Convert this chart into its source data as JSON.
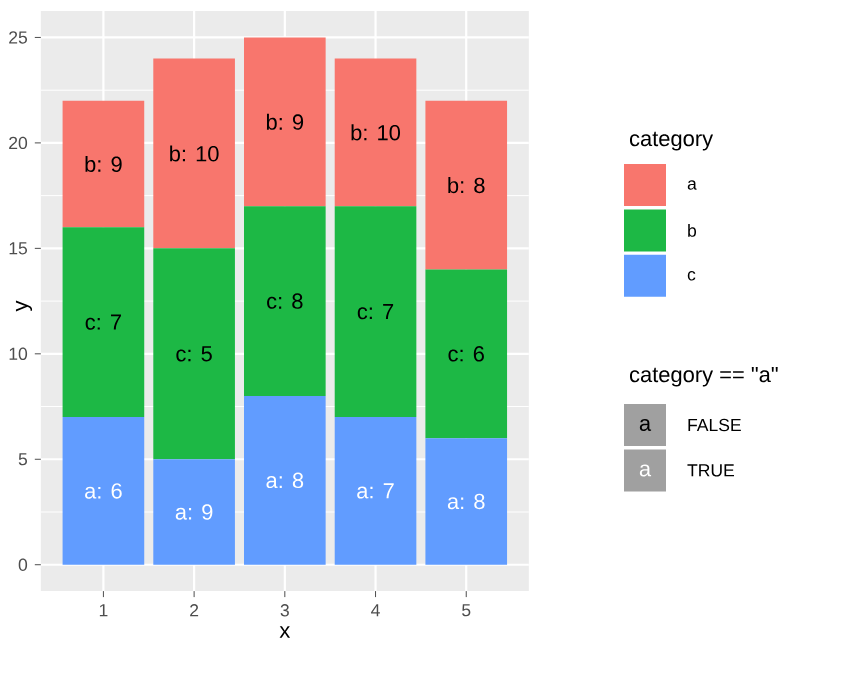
{
  "chart_data": {
    "type": "bar",
    "stacked": true,
    "categories": [
      "1",
      "2",
      "3",
      "4",
      "5"
    ],
    "xlabel": "x",
    "ylabel": "y",
    "legend_title": "category",
    "legend": "right",
    "grid": true,
    "ylim": [
      -1.25,
      26.25
    ],
    "yticks": [
      0,
      5,
      10,
      15,
      20,
      25
    ],
    "series": [
      {
        "name": "c",
        "color": "#619cff",
        "values": [
          7,
          5,
          8,
          7,
          6
        ]
      },
      {
        "name": "b",
        "color": "#1db845",
        "values": [
          9,
          10,
          9,
          10,
          8
        ]
      },
      {
        "name": "a",
        "color": "#f8766d",
        "values": [
          6,
          9,
          8,
          7,
          8
        ]
      }
    ],
    "annotations": [
      "a: 6",
      "a: 9",
      "a: 8",
      "a: 7",
      "a: 8",
      "c: 7",
      "c: 5",
      "c: 8",
      "c: 7",
      "c: 6",
      "b: 9",
      "b: 10",
      "b: 9",
      "b: 10",
      "b: 8",
      "category == \"a\"",
      "a",
      "FALSE",
      "a",
      "TRUE"
    ]
  }
}
